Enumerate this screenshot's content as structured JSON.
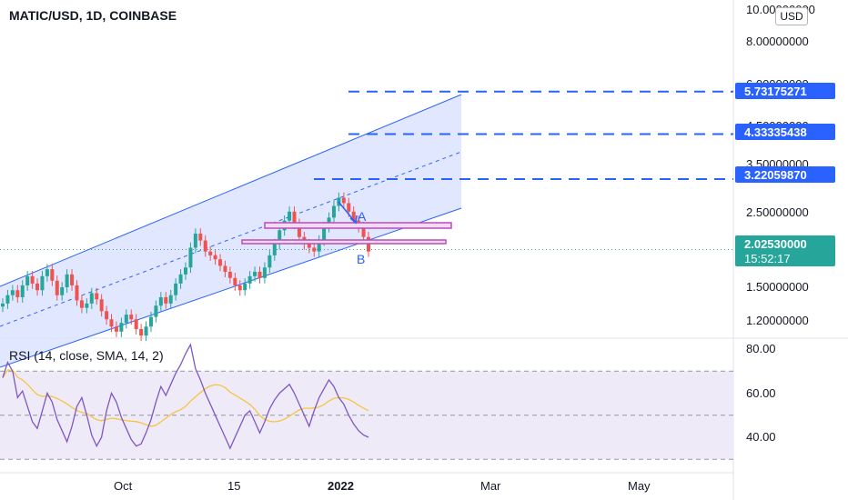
{
  "header": {
    "symbol": "MATIC/USD, 1D, COINBASE",
    "currency_button": "USD"
  },
  "rsi_header": {
    "label": "RSI (14, close, SMA, 14, 2)"
  },
  "colors": {
    "up": "#26a69a",
    "down": "#ef5350",
    "channel": "#2962ff",
    "channel_fill": "#dbe3ff",
    "rsi": "#7e57c2",
    "rsi_ma": "#f5c542",
    "price_tag": "#26a69a",
    "target_tag": "#2962ff",
    "zone": "#b84fb8"
  },
  "price_axis": {
    "labels": [
      "10.00000000",
      "8.00000000",
      "6.00000000",
      "4.50000000",
      "3.50000000",
      "2.50000000",
      "1.50000000",
      "1.20000000"
    ],
    "target_tags": [
      "5.73175271",
      "4.33335438",
      "3.22059870"
    ],
    "current_price": "2.02530000",
    "countdown": "15:52:17"
  },
  "rsi_axis": {
    "labels": [
      "80.00",
      "60.00",
      "40.00"
    ]
  },
  "time_axis": {
    "labels": [
      "Oct",
      "15",
      "2022",
      "Mar",
      "May"
    ]
  },
  "annotations": {
    "point_a": "A",
    "point_b": "B"
  },
  "chart_data": {
    "type": "candlestick",
    "title": "MATIC/USD, 1D, COINBASE",
    "y_scale": "log",
    "ylim": [
      1.05,
      10.5
    ],
    "rsi_ylim": [
      25,
      85
    ],
    "price_levels": [
      5.73175271,
      4.33335438,
      3.2205987
    ],
    "current_price": 2.0253,
    "rsi_bands": [
      70,
      50,
      30
    ],
    "price_path": [
      1.42,
      1.5,
      1.55,
      1.48,
      1.6,
      1.7,
      1.62,
      1.55,
      1.7,
      1.78,
      1.65,
      1.5,
      1.58,
      1.72,
      1.6,
      1.45,
      1.38,
      1.42,
      1.52,
      1.46,
      1.35,
      1.28,
      1.22,
      1.18,
      1.25,
      1.32,
      1.28,
      1.2,
      1.15,
      1.22,
      1.3,
      1.4,
      1.48,
      1.42,
      1.5,
      1.62,
      1.72,
      1.8,
      2.05,
      2.25,
      2.15,
      2.0,
      1.95,
      1.9,
      1.82,
      1.75,
      1.68,
      1.6,
      1.55,
      1.62,
      1.7,
      1.75,
      1.68,
      1.8,
      1.95,
      2.1,
      2.3,
      2.45,
      2.6,
      2.4,
      2.2,
      2.1,
      2.05,
      2.0,
      2.15,
      2.35,
      2.5,
      2.7,
      2.85,
      2.75,
      2.6,
      2.45,
      2.35,
      2.2,
      2.0
    ],
    "rsi": [
      67,
      74,
      70,
      58,
      61,
      54,
      47,
      44,
      52,
      60,
      56,
      48,
      43,
      38,
      45,
      54,
      58,
      50,
      41,
      36,
      40,
      52,
      60,
      56,
      49,
      44,
      39,
      36,
      37,
      42,
      48,
      56,
      63,
      59,
      64,
      69,
      73,
      78,
      82,
      71,
      66,
      60,
      55,
      50,
      45,
      40,
      35,
      40,
      45,
      50,
      52,
      47,
      42,
      47,
      53,
      57,
      60,
      62,
      64,
      60,
      55,
      50,
      45,
      52,
      58,
      62,
      66,
      63,
      58,
      55,
      50,
      46,
      43,
      41,
      40
    ]
  }
}
